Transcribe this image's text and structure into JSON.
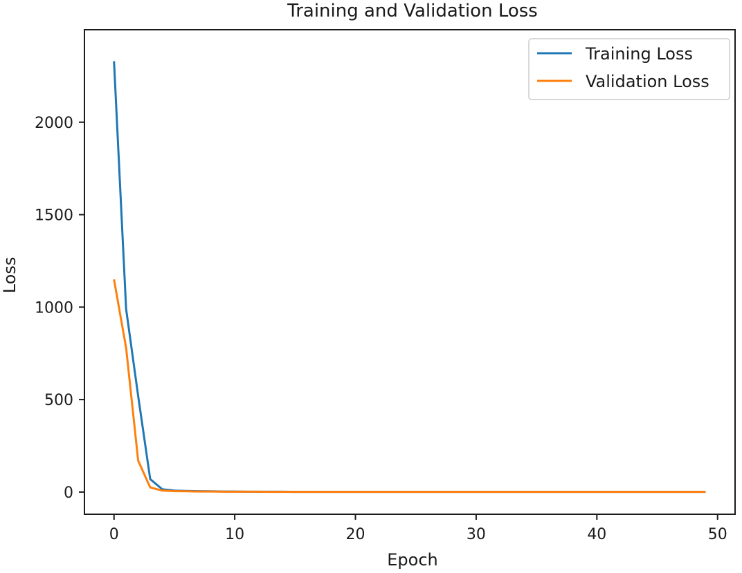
{
  "chart_data": {
    "type": "line",
    "title": "Training and Validation Loss",
    "xlabel": "Epoch",
    "ylabel": "Loss",
    "xlim": [
      -2.45,
      51.45
    ],
    "ylim": [
      -120,
      2500
    ],
    "xticks": [
      0,
      10,
      20,
      30,
      40,
      50
    ],
    "yticks": [
      0,
      500,
      1000,
      1500,
      2000
    ],
    "xtick_labels": [
      "0",
      "10",
      "20",
      "30",
      "40",
      "50"
    ],
    "ytick_labels": [
      "0",
      "500",
      "1000",
      "1500",
      "2000"
    ],
    "grid": false,
    "legend": "top-right",
    "series": [
      {
        "name": "Training Loss",
        "color": "#1f77b4",
        "x": [
          0,
          1,
          2,
          3,
          4,
          5,
          6,
          7,
          8,
          9,
          10,
          11,
          12,
          13,
          14,
          15,
          16,
          17,
          18,
          19,
          20,
          21,
          22,
          23,
          24,
          25,
          26,
          27,
          28,
          29,
          30,
          31,
          32,
          33,
          34,
          35,
          36,
          37,
          38,
          39,
          40,
          41,
          42,
          43,
          44,
          45,
          46,
          47,
          48,
          49
        ],
        "values": [
          2330,
          990,
          520,
          70,
          15,
          8,
          6,
          5,
          4,
          3,
          3,
          2,
          2,
          2,
          2,
          1,
          1,
          1,
          1,
          1,
          1,
          1,
          1,
          1,
          1,
          1,
          1,
          1,
          1,
          1,
          1,
          1,
          1,
          1,
          1,
          1,
          1,
          1,
          1,
          1,
          1,
          1,
          1,
          1,
          1,
          1,
          1,
          1,
          1,
          1
        ]
      },
      {
        "name": "Validation Loss",
        "color": "#ff7f0e",
        "x": [
          0,
          1,
          2,
          3,
          4,
          5,
          6,
          7,
          8,
          9,
          10,
          11,
          12,
          13,
          14,
          15,
          16,
          17,
          18,
          19,
          20,
          21,
          22,
          23,
          24,
          25,
          26,
          27,
          28,
          29,
          30,
          31,
          32,
          33,
          34,
          35,
          36,
          37,
          38,
          39,
          40,
          41,
          42,
          43,
          44,
          45,
          46,
          47,
          48,
          49
        ],
        "values": [
          1150,
          780,
          170,
          25,
          8,
          5,
          4,
          3,
          3,
          2,
          2,
          2,
          2,
          1,
          1,
          1,
          1,
          1,
          1,
          1,
          1,
          1,
          1,
          1,
          1,
          1,
          1,
          1,
          1,
          1,
          1,
          1,
          1,
          1,
          1,
          1,
          1,
          1,
          1,
          1,
          1,
          1,
          1,
          1,
          1,
          1,
          1,
          1,
          1,
          1
        ]
      }
    ]
  }
}
